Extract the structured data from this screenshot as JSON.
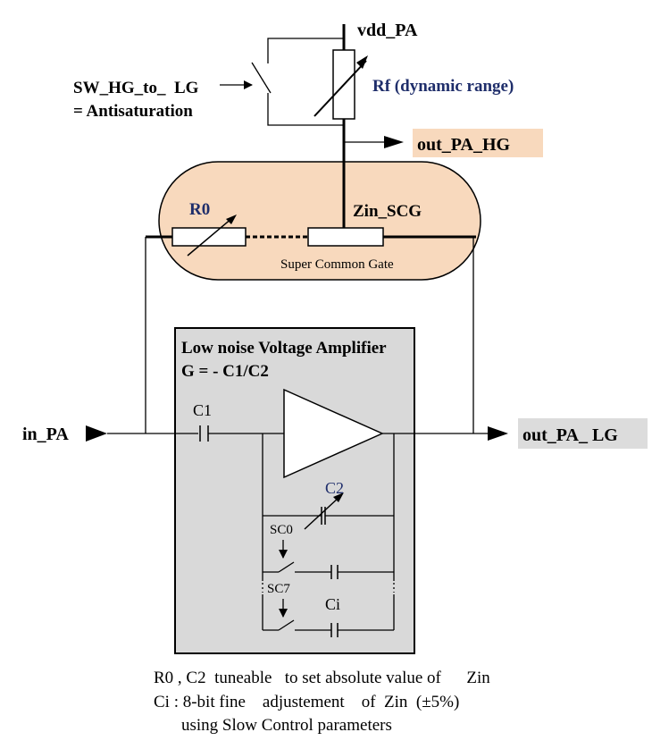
{
  "labels": {
    "vdd": "vdd_PA",
    "sw_line1": "SW_HG_to_  LG",
    "sw_line2": "= Antisaturation",
    "rf": "Rf (dynamic range)",
    "out_hg": "out_PA_HG",
    "r0": "R0",
    "zin": "Zin_SCG",
    "scg": "Super Common Gate",
    "lna_title": "Low noise Voltage Amplifier",
    "lna_gain": "G = - C1/C2",
    "c1": "C1",
    "in_pa": "in_PA",
    "out_lg": "out_PA_ LG",
    "c2": "C2",
    "sc0": "SC0",
    "sc7": "SC7",
    "ci": "Ci"
  },
  "notes": {
    "line1": "R0 , C2  tuneable   to set absolute value of      Zin",
    "line2": "Ci : 8-bit fine    adjustement    of  Zin  (±5%)",
    "line3": "using Slow Control parameters"
  },
  "colors": {
    "scg_fill": "#f8d9bd",
    "out_hg_fill": "#f8d9bd",
    "lna_box_fill": "#d9d9d9",
    "out_lg_fill": "#dcdcdc",
    "label_blue": "#1f2e6b"
  }
}
